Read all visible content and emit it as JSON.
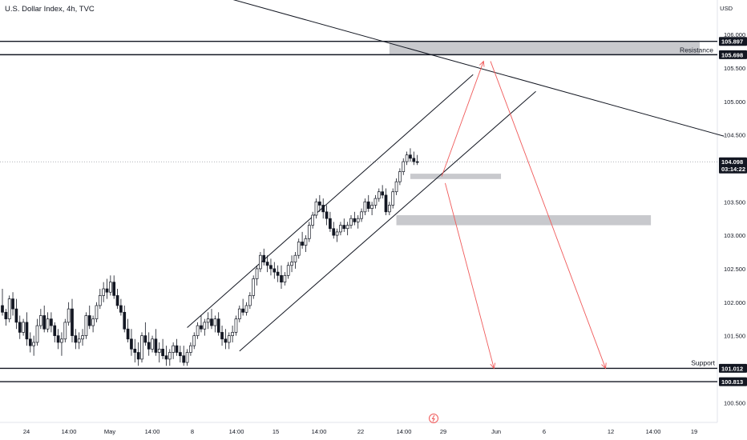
{
  "header": {
    "symbol_title": "U.S. Dollar Index, 4h, TVC",
    "currency": "USD"
  },
  "colors": {
    "candle": "#131722",
    "trendline": "#131722",
    "projection": "#f05a5a",
    "zone": "#c8c9cd",
    "price_tag": "#131722",
    "background": "#ffffff",
    "alert_icon": "#f05a5a"
  },
  "chart_data": {
    "type": "candlestick",
    "symbol": "DXY",
    "interval": "4h",
    "x_axis_labels": [
      "24",
      "14:00",
      "May",
      "14:00",
      "8",
      "14:00",
      "15",
      "14:00",
      "22",
      "14:00",
      "29",
      "Jun",
      "6",
      "12",
      "14:00",
      "19"
    ],
    "y_axis_ticks": [
      "106.000",
      "105.500",
      "105.000",
      "104.500",
      "103.500",
      "103.000",
      "102.500",
      "102.000",
      "101.500",
      "100.500"
    ],
    "ylim": [
      100.3,
      106.3
    ],
    "price_tags": [
      {
        "label": "105.897",
        "value": 105.897
      },
      {
        "label": "105.698",
        "value": 105.698
      },
      {
        "label": "104.098",
        "value": 104.098,
        "countdown": "03:14:22"
      },
      {
        "label": "101.012",
        "value": 101.012
      },
      {
        "label": "100.813",
        "value": 100.813
      }
    ],
    "levels": [
      {
        "name": "Resistance",
        "value": 105.897
      },
      {
        "name": "Resistance",
        "value": 105.698
      },
      {
        "name": "Support",
        "value": 101.012
      },
      {
        "name": "Support",
        "value": 100.813
      }
    ],
    "annotations": [
      "Resistance",
      "Support"
    ],
    "zones": [
      {
        "name": "Resistance",
        "x_from_slot": 111,
        "x_to_slot": 200,
        "y_low": 105.698,
        "y_high": 105.897
      },
      {
        "name": "demand-zone-upper",
        "x_from_slot": 117,
        "x_to_slot": 143,
        "y_low": 103.84,
        "y_high": 103.92
      },
      {
        "name": "demand-zone-lower",
        "x_from_slot": 113,
        "x_to_slot": 186,
        "y_low": 103.15,
        "y_high": 103.3
      }
    ],
    "trendlines": [
      {
        "name": "long-term-resistance",
        "x1_slot": 40,
        "y1": 106.9,
        "x2_slot": 207,
        "y2": 104.48
      },
      {
        "name": "channel-upper",
        "x1_slot": 53,
        "y1": 101.62,
        "x2_slot": 135,
        "y2": 105.4
      },
      {
        "name": "channel-lower",
        "x1_slot": 68,
        "y1": 101.27,
        "x2_slot": 153,
        "y2": 105.15
      }
    ],
    "projections": [
      {
        "name": "up-leg",
        "x1_slot": 126,
        "y1": 103.88,
        "x2_slot": 138,
        "y2": 105.6
      },
      {
        "name": "down-leg-1",
        "x1_slot": 127,
        "y1": 103.78,
        "x2_slot": 141,
        "y2": 101.012
      },
      {
        "name": "down-leg-2",
        "x1_slot": 140,
        "y1": 105.6,
        "x2_slot": 173,
        "y2": 101.012
      }
    ],
    "candles": [
      [
        101.95,
        102.2,
        101.8,
        101.85
      ],
      [
        101.85,
        101.9,
        101.65,
        101.75
      ],
      [
        101.75,
        102.1,
        101.7,
        102.05
      ],
      [
        102.05,
        102.15,
        101.8,
        101.9
      ],
      [
        101.9,
        102.05,
        101.6,
        101.7
      ],
      [
        101.7,
        101.8,
        101.45,
        101.55
      ],
      [
        101.55,
        101.75,
        101.5,
        101.7
      ],
      [
        101.7,
        101.85,
        101.35,
        101.45
      ],
      [
        101.45,
        101.55,
        101.25,
        101.35
      ],
      [
        101.35,
        101.5,
        101.2,
        101.4
      ],
      [
        101.4,
        101.75,
        101.35,
        101.65
      ],
      [
        101.65,
        101.9,
        101.6,
        101.8
      ],
      [
        101.8,
        101.95,
        101.55,
        101.6
      ],
      [
        101.6,
        101.85,
        101.55,
        101.75
      ],
      [
        101.75,
        101.85,
        101.55,
        101.65
      ],
      [
        101.65,
        101.7,
        101.4,
        101.5
      ],
      [
        101.5,
        101.6,
        101.3,
        101.4
      ],
      [
        101.4,
        101.55,
        101.2,
        101.45
      ],
      [
        101.45,
        101.75,
        101.4,
        101.7
      ],
      [
        101.7,
        102.0,
        101.65,
        101.9
      ],
      [
        101.9,
        102.05,
        101.4,
        101.5
      ],
      [
        101.5,
        101.6,
        101.3,
        101.4
      ],
      [
        101.4,
        101.55,
        101.3,
        101.45
      ],
      [
        101.45,
        101.6,
        101.35,
        101.5
      ],
      [
        101.5,
        101.85,
        101.45,
        101.8
      ],
      [
        101.8,
        101.95,
        101.6,
        101.65
      ],
      [
        101.65,
        101.8,
        101.55,
        101.75
      ],
      [
        101.75,
        102.0,
        101.7,
        101.95
      ],
      [
        101.95,
        102.2,
        101.9,
        102.1
      ],
      [
        102.1,
        102.3,
        102.0,
        102.2
      ],
      [
        102.2,
        102.35,
        102.05,
        102.15
      ],
      [
        102.15,
        102.4,
        102.1,
        102.3
      ],
      [
        102.3,
        102.4,
        102.05,
        102.1
      ],
      [
        102.1,
        102.2,
        101.9,
        101.95
      ],
      [
        101.95,
        102.05,
        101.8,
        101.85
      ],
      [
        101.85,
        101.95,
        101.55,
        101.6
      ],
      [
        101.6,
        101.75,
        101.4,
        101.45
      ],
      [
        101.45,
        101.6,
        101.2,
        101.3
      ],
      [
        101.3,
        101.45,
        101.1,
        101.25
      ],
      [
        101.25,
        101.4,
        101.05,
        101.15
      ],
      [
        101.15,
        101.55,
        101.1,
        101.5
      ],
      [
        101.5,
        101.7,
        101.35,
        101.4
      ],
      [
        101.4,
        101.55,
        101.2,
        101.3
      ],
      [
        101.3,
        101.5,
        101.25,
        101.45
      ],
      [
        101.45,
        101.6,
        101.2,
        101.25
      ],
      [
        101.25,
        101.4,
        101.1,
        101.3
      ],
      [
        101.3,
        101.45,
        101.15,
        101.2
      ],
      [
        101.2,
        101.35,
        101.05,
        101.15
      ],
      [
        101.15,
        101.3,
        101.05,
        101.25
      ],
      [
        101.25,
        101.4,
        101.15,
        101.35
      ],
      [
        101.35,
        101.45,
        101.2,
        101.25
      ],
      [
        101.25,
        101.35,
        101.1,
        101.2
      ],
      [
        101.2,
        101.35,
        101.05,
        101.1
      ],
      [
        101.1,
        101.3,
        101.05,
        101.25
      ],
      [
        101.25,
        101.4,
        101.2,
        101.35
      ],
      [
        101.35,
        101.55,
        101.3,
        101.5
      ],
      [
        101.5,
        101.7,
        101.45,
        101.65
      ],
      [
        101.65,
        101.8,
        101.55,
        101.6
      ],
      [
        101.6,
        101.75,
        101.5,
        101.7
      ],
      [
        101.7,
        101.85,
        101.6,
        101.75
      ],
      [
        101.75,
        101.9,
        101.6,
        101.65
      ],
      [
        101.65,
        101.8,
        101.55,
        101.75
      ],
      [
        101.75,
        101.85,
        101.5,
        101.55
      ],
      [
        101.55,
        101.65,
        101.35,
        101.45
      ],
      [
        101.45,
        101.6,
        101.3,
        101.4
      ],
      [
        101.4,
        101.55,
        101.3,
        101.5
      ],
      [
        101.5,
        101.65,
        101.4,
        101.55
      ],
      [
        101.55,
        101.8,
        101.5,
        101.75
      ],
      [
        101.75,
        101.95,
        101.7,
        101.9
      ],
      [
        101.9,
        102.05,
        101.8,
        101.85
      ],
      [
        101.85,
        102.0,
        101.8,
        101.95
      ],
      [
        101.95,
        102.15,
        101.9,
        102.1
      ],
      [
        102.1,
        102.4,
        102.05,
        102.35
      ],
      [
        102.35,
        102.55,
        102.25,
        102.5
      ],
      [
        102.5,
        102.75,
        102.45,
        102.7
      ],
      [
        102.7,
        102.8,
        102.55,
        102.6
      ],
      [
        102.6,
        102.7,
        102.45,
        102.55
      ],
      [
        102.55,
        102.65,
        102.4,
        102.5
      ],
      [
        102.5,
        102.6,
        102.35,
        102.45
      ],
      [
        102.45,
        102.55,
        102.3,
        102.4
      ],
      [
        102.4,
        102.55,
        102.2,
        102.3
      ],
      [
        102.3,
        102.45,
        102.25,
        102.4
      ],
      [
        102.4,
        102.6,
        102.35,
        102.55
      ],
      [
        102.55,
        102.7,
        102.45,
        102.6
      ],
      [
        102.6,
        102.75,
        102.5,
        102.7
      ],
      [
        102.7,
        102.95,
        102.65,
        102.9
      ],
      [
        102.9,
        103.05,
        102.8,
        102.85
      ],
      [
        102.85,
        103.0,
        102.75,
        102.95
      ],
      [
        102.95,
        103.2,
        102.9,
        103.15
      ],
      [
        103.15,
        103.35,
        103.1,
        103.3
      ],
      [
        103.3,
        103.55,
        103.25,
        103.5
      ],
      [
        103.5,
        103.6,
        103.35,
        103.45
      ],
      [
        103.45,
        103.55,
        103.25,
        103.35
      ],
      [
        103.35,
        103.45,
        103.15,
        103.25
      ],
      [
        103.25,
        103.35,
        103.05,
        103.1
      ],
      [
        103.1,
        103.2,
        102.95,
        103.0
      ],
      [
        103.0,
        103.1,
        102.9,
        103.05
      ],
      [
        103.05,
        103.2,
        103.0,
        103.15
      ],
      [
        103.15,
        103.25,
        103.05,
        103.1
      ],
      [
        103.1,
        103.2,
        103.0,
        103.15
      ],
      [
        103.15,
        103.3,
        103.1,
        103.25
      ],
      [
        103.25,
        103.35,
        103.15,
        103.2
      ],
      [
        103.2,
        103.3,
        103.1,
        103.25
      ],
      [
        103.25,
        103.4,
        103.2,
        103.35
      ],
      [
        103.35,
        103.55,
        103.3,
        103.5
      ],
      [
        103.5,
        103.6,
        103.35,
        103.4
      ],
      [
        103.4,
        103.5,
        103.3,
        103.45
      ],
      [
        103.45,
        103.6,
        103.4,
        103.55
      ],
      [
        103.55,
        103.7,
        103.5,
        103.65
      ],
      [
        103.65,
        103.75,
        103.55,
        103.6
      ],
      [
        103.6,
        103.7,
        103.3,
        103.35
      ],
      [
        103.35,
        103.5,
        103.3,
        103.45
      ],
      [
        103.45,
        103.7,
        103.4,
        103.65
      ],
      [
        103.65,
        103.85,
        103.6,
        103.8
      ],
      [
        103.8,
        104.0,
        103.75,
        103.95
      ],
      [
        103.95,
        104.15,
        103.9,
        104.1
      ],
      [
        104.1,
        104.25,
        104.05,
        104.2
      ],
      [
        104.2,
        104.3,
        104.1,
        104.15
      ],
      [
        104.15,
        104.25,
        104.05,
        104.1
      ],
      [
        104.1,
        104.2,
        104.05,
        104.098
      ]
    ]
  }
}
